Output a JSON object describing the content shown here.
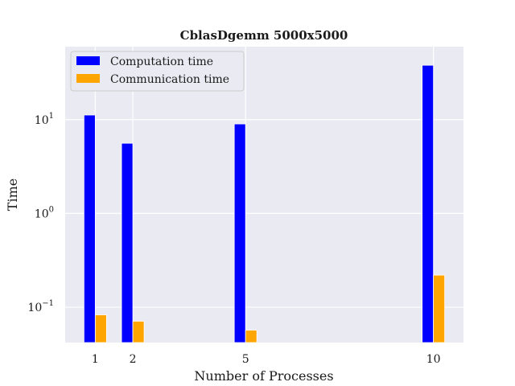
{
  "chart_data": {
    "type": "bar",
    "title": "CblasDgemm 5000x5000",
    "xlabel": "Number of Processes",
    "ylabel": "Time",
    "yscale": "log",
    "ylim": [
      0.042,
      60
    ],
    "xlim": [
      0.2,
      10.8
    ],
    "x": [
      1,
      2,
      5,
      10
    ],
    "xtick_labels": [
      "1",
      "2",
      "5",
      "10"
    ],
    "ytick_values": [
      0.1,
      1,
      10
    ],
    "ytick_labels": [
      {
        "base": "10",
        "exp": "−1"
      },
      {
        "base": "10",
        "exp": "0"
      },
      {
        "base": "10",
        "exp": "1"
      }
    ],
    "grid": true,
    "legend_position": "top-left",
    "series": [
      {
        "name": "Computation time",
        "color": "#0000ff",
        "values": [
          11.2,
          5.6,
          9.0,
          38.0
        ]
      },
      {
        "name": "Communication time",
        "color": "#ffa500",
        "values": [
          0.083,
          0.071,
          0.057,
          0.22
        ]
      }
    ]
  }
}
